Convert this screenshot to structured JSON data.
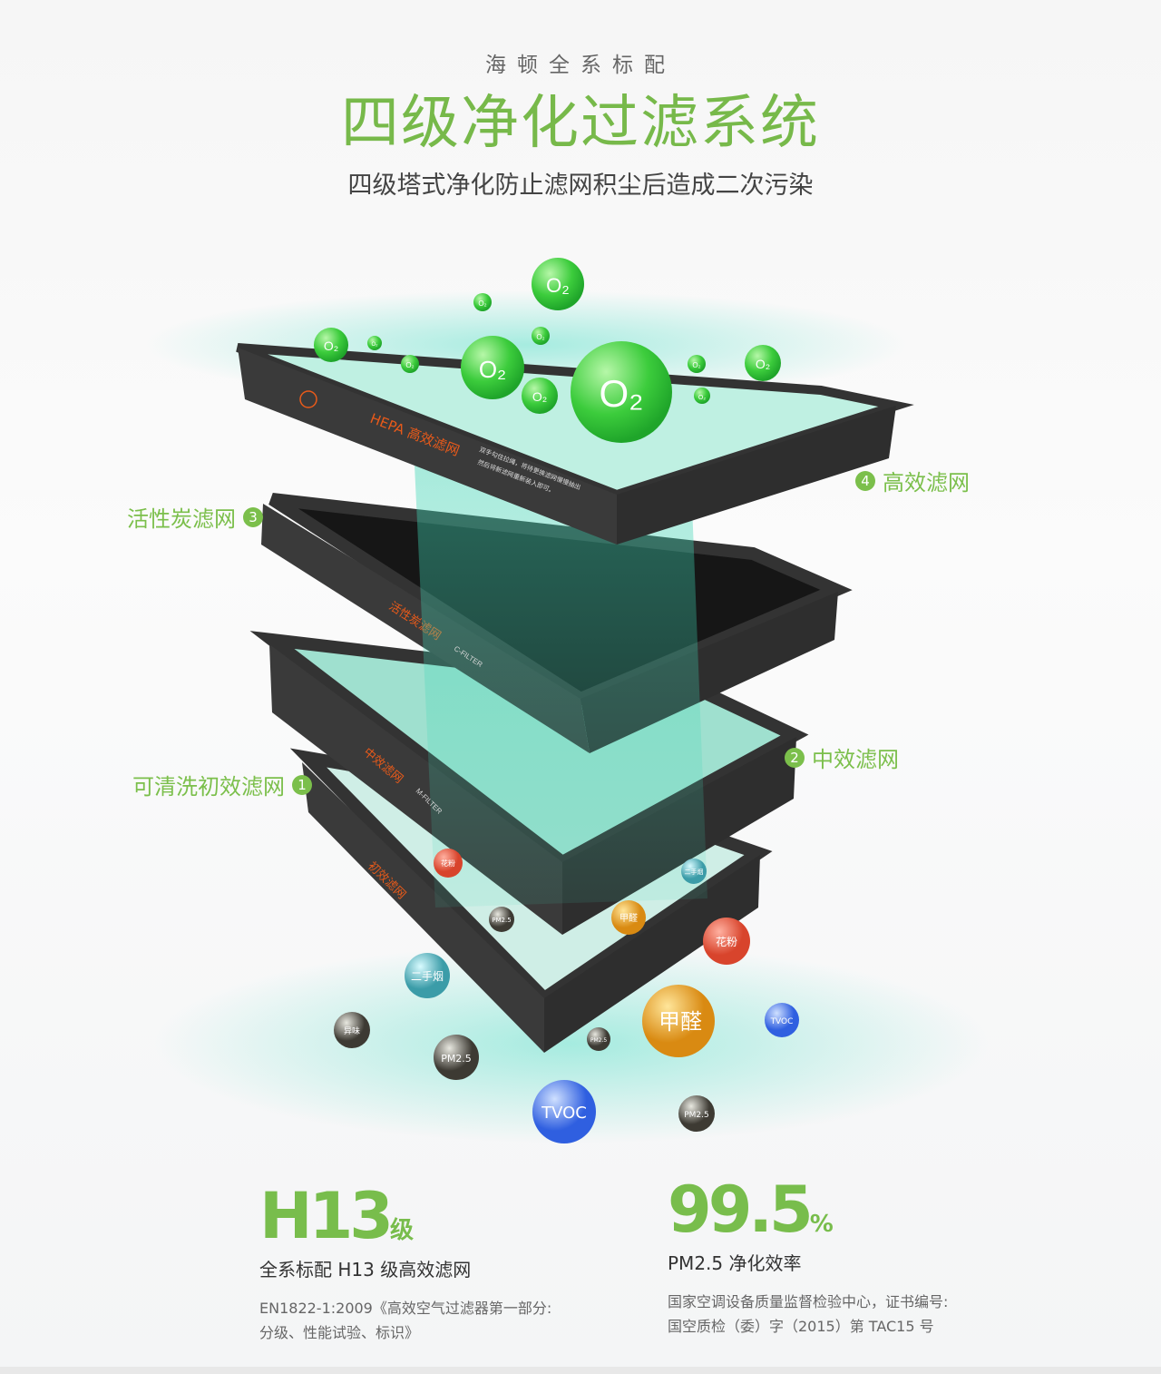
{
  "header": {
    "kicker": "海顿全系标配",
    "title": "四级净化过滤系统",
    "subtitle": "四级塔式净化防止滤网积尘后造成二次污染"
  },
  "filters": [
    {
      "number": "1",
      "label": "可清洗初效滤网",
      "print": "初效滤网",
      "print_en": "M-FILTER"
    },
    {
      "number": "2",
      "label": "中效滤网",
      "print": "中效滤网"
    },
    {
      "number": "3",
      "label": "活性炭滤网",
      "print": "活性炭滤网",
      "print_en": "C-FILTER"
    },
    {
      "number": "4",
      "label": "高效滤网",
      "print": "HEPA 高效滤网",
      "print_note_1": "双手勾住拉绳，将待更换滤网慢慢抽出",
      "print_note_2": "然后将新滤网重新装入即可。"
    }
  ],
  "oxygen": "O₂",
  "pollutants": {
    "pollen": "花粉",
    "formaldehyde": "甲醛",
    "smoke": "二手烟",
    "pm25": "PM2.5",
    "tvoc": "TVOC",
    "odor": "异味"
  },
  "colors": {
    "accent": "#77b94a",
    "filter_frame": "#3a3a3a",
    "filter_print": "#e85a1a",
    "airflow": "#3fd6b5",
    "oxygen": "#3ccc3c"
  },
  "stats": [
    {
      "value": "H13",
      "unit": "级",
      "label": "全系标配 H13 级高效滤网",
      "note_1": "EN1822-1:2009《高效空气过滤器第一部分:",
      "note_2": "分级、性能试验、标识》"
    },
    {
      "value": "99.5",
      "unit": "%",
      "label": "PM2.5 净化效率",
      "note_1": "国家空调设备质量监督检验中心，证书编号:",
      "note_2": "国空质检（委）字（2015）第 TAC15 号"
    }
  ]
}
